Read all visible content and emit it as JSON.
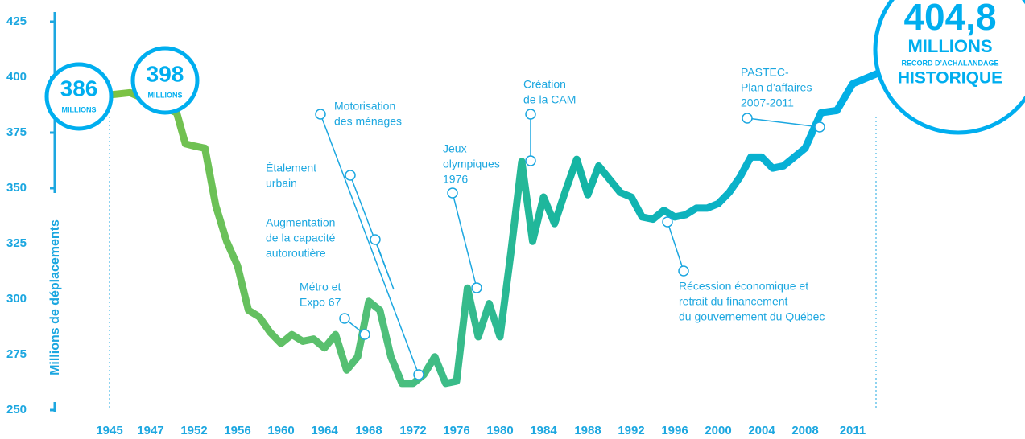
{
  "chart_data": {
    "type": "line",
    "y_label": "Millions de déplacements",
    "x": [
      1945,
      1946,
      1950,
      1951,
      1952,
      1953,
      1954,
      1955,
      1956,
      1957,
      1958,
      1959,
      1960,
      1961,
      1962,
      1963,
      1964,
      1965,
      1966,
      1967,
      1968,
      1969,
      1970,
      1971,
      1972,
      1973,
      1974,
      1975,
      1976,
      1977,
      1978,
      1979,
      1980,
      1981,
      1982,
      1983,
      1984,
      1985,
      1986,
      1987,
      1988,
      1989,
      1990,
      1991,
      1992,
      1993,
      1994,
      1995,
      1996,
      1997,
      1998,
      1999,
      2000,
      2001,
      2002,
      2003,
      2004,
      2005,
      2006,
      2007,
      2008,
      2009,
      2010,
      2011,
      2012,
      2013
    ],
    "series": [
      {
        "name": "Achalandage",
        "color": "#00aeef",
        "values": [
          392,
          393,
          384,
          370,
          369,
          368,
          342,
          326,
          315,
          295,
          292,
          285,
          280,
          284,
          281,
          282,
          278,
          284,
          268,
          274,
          299,
          295,
          274,
          262,
          262,
          266,
          274,
          262,
          263,
          305,
          283,
          298,
          283,
          321,
          362,
          326,
          346,
          334,
          349,
          363,
          347,
          360,
          354,
          348,
          346,
          337,
          336,
          340,
          337,
          338,
          341,
          341,
          343,
          348,
          355,
          364,
          364,
          359,
          360,
          364,
          368,
          384,
          385,
          397,
          400,
          403
        ]
      }
    ],
    "ylim": [
      250,
      425
    ],
    "yticks": [
      250,
      275,
      300,
      325,
      350,
      375,
      400,
      425
    ],
    "xlim": [
      1945,
      2013
    ],
    "xticks": [
      1945,
      1947,
      1952,
      1956,
      1960,
      1964,
      1968,
      1972,
      1976,
      1980,
      1984,
      1988,
      1992,
      1996,
      2000,
      2004,
      2008,
      2011
    ],
    "bubbles": [
      {
        "lines": [
          "386",
          "MILLIONS"
        ]
      },
      {
        "lines": [
          "398",
          "MILLIONS"
        ]
      },
      {
        "lines": [
          "404,8",
          "MILLIONS",
          "RECORD D’ACHALANDAGE",
          "HISTORIQUE"
        ]
      }
    ],
    "annotations": [
      {
        "lines": [
          "Motorisation",
          "des ménages"
        ]
      },
      {
        "lines": [
          "Étalement",
          "urbain"
        ]
      },
      {
        "lines": [
          "Augmentation",
          "de la capacité",
          "autoroutière"
        ]
      },
      {
        "lines": [
          "Métro et",
          "Expo 67"
        ]
      },
      {
        "lines": [
          "Jeux",
          "olympiques",
          "1976"
        ]
      },
      {
        "lines": [
          "Création",
          "de la CAM"
        ]
      },
      {
        "lines": [
          "PASTEC-",
          "Plan d’affaires",
          "2007-2011"
        ]
      },
      {
        "lines": [
          "Récession économique et",
          "retrait du financement",
          "du gouvernement du Québec"
        ]
      }
    ]
  }
}
